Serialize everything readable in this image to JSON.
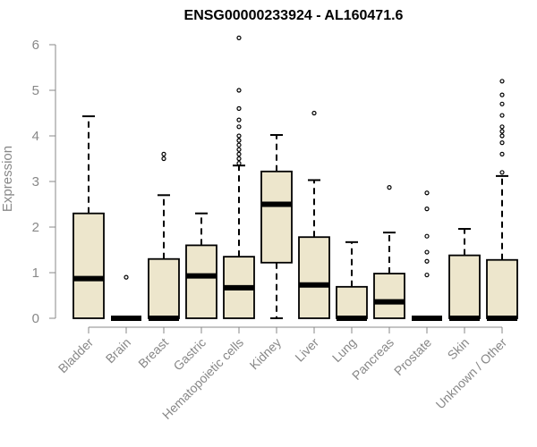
{
  "chart_data": {
    "type": "boxplot",
    "title": "ENSG00000233924 - AL160471.6",
    "xlabel": "",
    "ylabel": "Expression",
    "ylim": [
      0,
      6.2
    ],
    "yticks": [
      0,
      1,
      2,
      3,
      4,
      5,
      6
    ],
    "grid": false,
    "box_color": "#ede6cc",
    "categories": [
      "Bladder",
      "Brain",
      "Breast",
      "Gastric",
      "Hematopoietic cells",
      "Kidney",
      "Liver",
      "Lung",
      "Pancreas",
      "Prostate",
      "Skin",
      "Unknown / Other"
    ],
    "series": [
      {
        "name": "Bladder",
        "whisker_low": 0,
        "q1": 0,
        "median": 0.87,
        "q3": 2.3,
        "whisker_high": 4.43,
        "outliers": []
      },
      {
        "name": "Brain",
        "whisker_low": 0,
        "q1": 0,
        "median": 0,
        "q3": 0,
        "whisker_high": 0,
        "outliers": [
          0.9
        ]
      },
      {
        "name": "Breast",
        "whisker_low": 0,
        "q1": 0,
        "median": 0,
        "q3": 1.3,
        "whisker_high": 2.7,
        "outliers": [
          3.5,
          3.6
        ]
      },
      {
        "name": "Gastric",
        "whisker_low": 0,
        "q1": 0,
        "median": 0.93,
        "q3": 1.6,
        "whisker_high": 2.3,
        "outliers": []
      },
      {
        "name": "Hematopoietic cells",
        "whisker_low": 0,
        "q1": 0,
        "median": 0.67,
        "q3": 1.35,
        "whisker_high": 3.35,
        "outliers": [
          3.4,
          3.5,
          3.6,
          3.7,
          3.8,
          3.9,
          4.0,
          4.2,
          4.35,
          4.6,
          5.0,
          6.15
        ]
      },
      {
        "name": "Kidney",
        "whisker_low": 0,
        "q1": 1.22,
        "median": 2.5,
        "q3": 3.22,
        "whisker_high": 4.02,
        "outliers": []
      },
      {
        "name": "Liver",
        "whisker_low": 0,
        "q1": 0,
        "median": 0.73,
        "q3": 1.78,
        "whisker_high": 3.03,
        "outliers": [
          4.5
        ]
      },
      {
        "name": "Lung",
        "whisker_low": 0,
        "q1": 0,
        "median": 0,
        "q3": 0.69,
        "whisker_high": 1.67,
        "outliers": []
      },
      {
        "name": "Pancreas",
        "whisker_low": 0,
        "q1": 0,
        "median": 0.36,
        "q3": 0.98,
        "whisker_high": 1.88,
        "outliers": [
          2.87
        ]
      },
      {
        "name": "Prostate",
        "whisker_low": 0,
        "q1": 0,
        "median": 0,
        "q3": 0,
        "whisker_high": 0,
        "outliers": [
          0.95,
          1.25,
          1.45,
          1.8,
          2.4,
          2.75
        ]
      },
      {
        "name": "Skin",
        "whisker_low": 0,
        "q1": 0,
        "median": 0,
        "q3": 1.38,
        "whisker_high": 1.96,
        "outliers": []
      },
      {
        "name": "Unknown / Other",
        "whisker_low": 0,
        "q1": 0,
        "median": 0,
        "q3": 1.28,
        "whisker_high": 3.12,
        "outliers": [
          3.2,
          3.6,
          3.85,
          4.0,
          4.1,
          4.2,
          4.45,
          4.7,
          4.9,
          5.2
        ]
      }
    ]
  }
}
